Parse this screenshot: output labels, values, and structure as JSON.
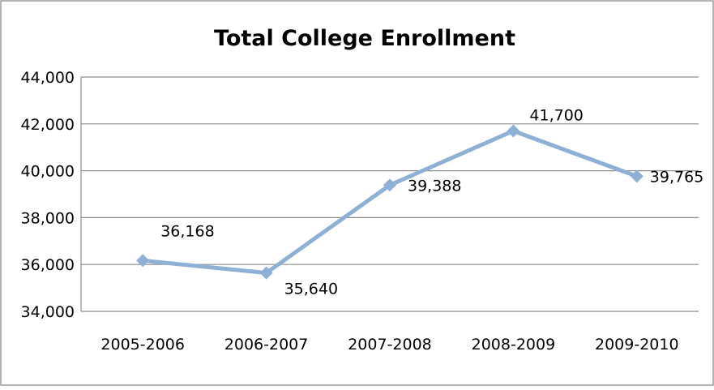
{
  "chart_data": {
    "type": "line",
    "title": "Total College Enrollment",
    "xlabel": "",
    "ylabel": "",
    "categories": [
      "2005-2006",
      "2006-2007",
      "2007-2008",
      "2008-2009",
      "2009-2010"
    ],
    "series": [
      {
        "values": [
          36168,
          35640,
          39388,
          41700,
          39765
        ],
        "data_labels": [
          "36,168",
          "35,640",
          "39,388",
          "41,700",
          "39,765"
        ]
      }
    ],
    "ylim": [
      34000,
      44000
    ],
    "yticks": [
      34000,
      36000,
      38000,
      40000,
      42000,
      44000
    ],
    "ytick_labels": [
      "34,000",
      "36,000",
      "38,000",
      "40,000",
      "42,000",
      "44,000"
    ],
    "grid": true,
    "legend": "none",
    "marker": "diamond",
    "colors": {
      "series": "#8eb0d4",
      "grid": "#8c8c8c",
      "axis": "#8c8c8c",
      "border": "#9a9a9a",
      "text": "#000000"
    }
  }
}
